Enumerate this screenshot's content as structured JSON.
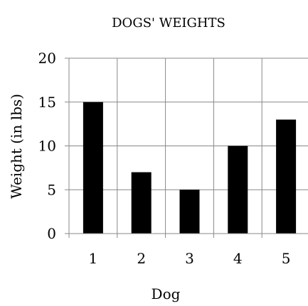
{
  "chart_data": {
    "type": "bar",
    "title": "DOGS' WEIGHTS",
    "xlabel": "Dog",
    "ylabel": "Weight (in lbs)",
    "categories": [
      "1",
      "2",
      "3",
      "4",
      "5"
    ],
    "values": [
      15,
      7,
      5,
      10,
      13
    ],
    "ylim": [
      0,
      20
    ],
    "yticks": [
      "0",
      "5",
      "10",
      "15",
      "20"
    ],
    "grid": true,
    "legend": "none",
    "bar_color": "#000000",
    "grid_color": "#888888"
  }
}
